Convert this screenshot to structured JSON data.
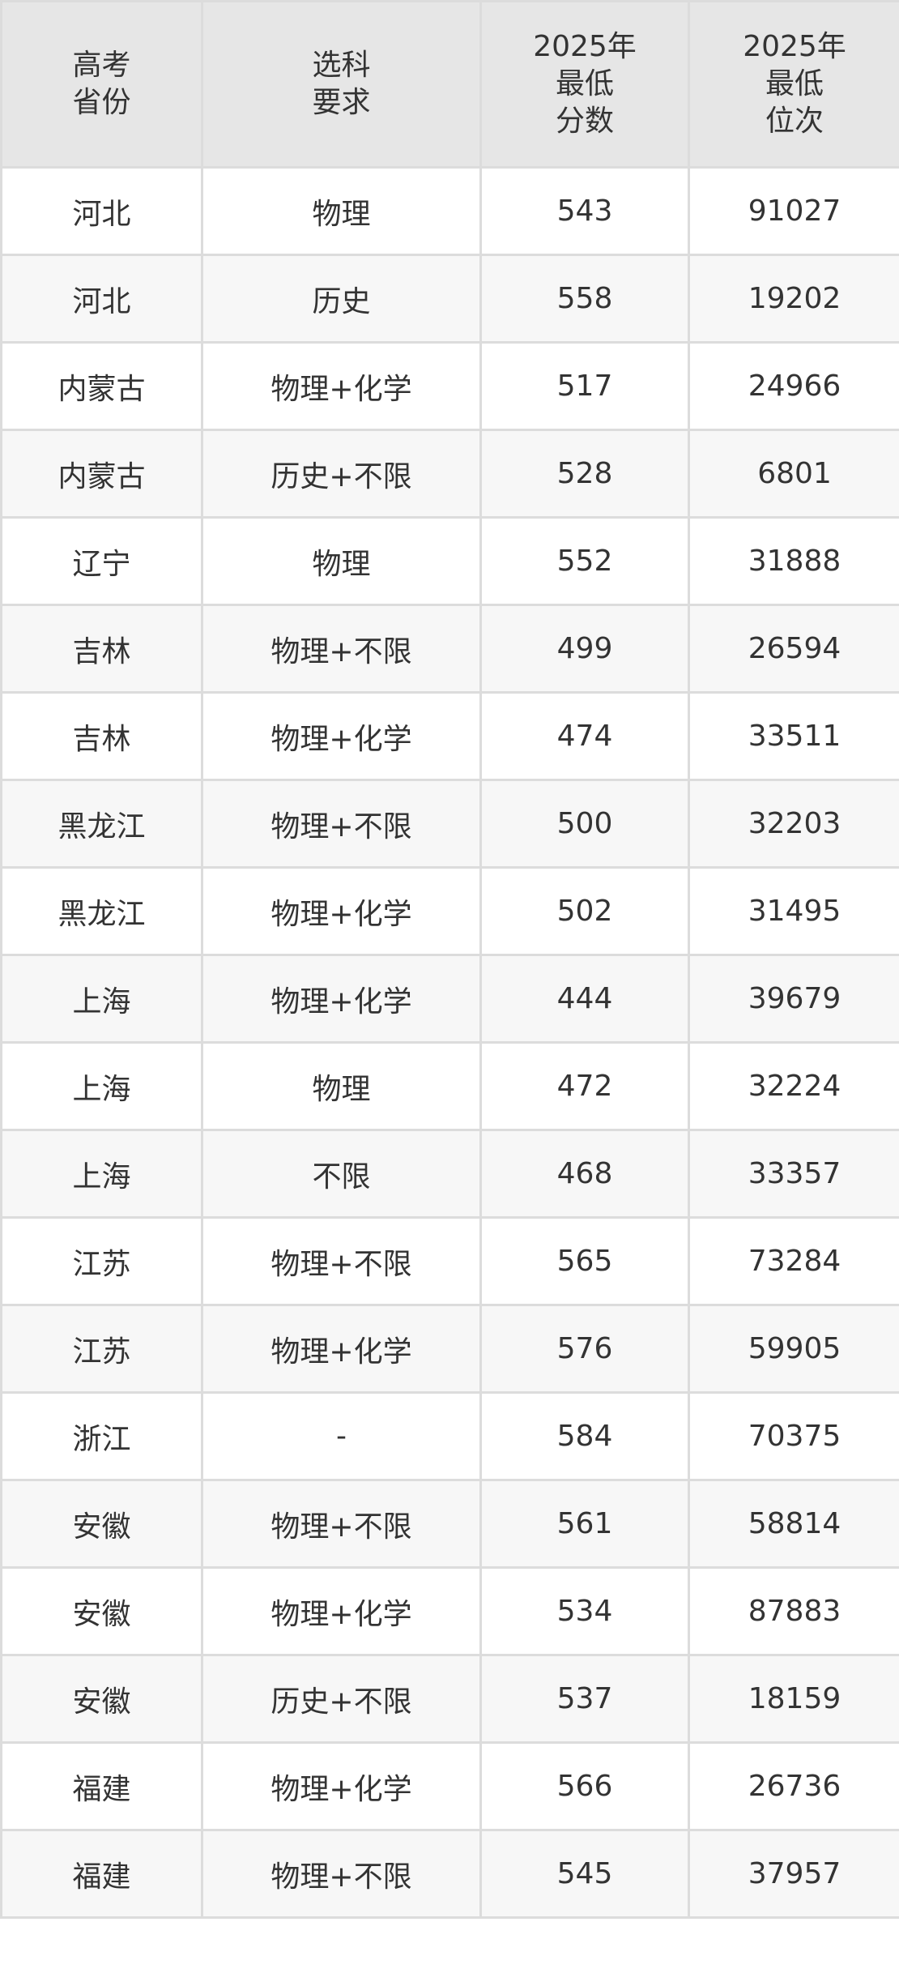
{
  "header": {
    "province": [
      "高考",
      "省份"
    ],
    "subject": [
      "选科",
      "要求"
    ],
    "min_score": [
      "2025年",
      "最低",
      "分数"
    ],
    "min_rank": [
      "2025年",
      "最低",
      "位次"
    ]
  },
  "rows": [
    {
      "province": "河北",
      "subject": "物理",
      "score": "543",
      "rank": "91027"
    },
    {
      "province": "河北",
      "subject": "历史",
      "score": "558",
      "rank": "19202"
    },
    {
      "province": "内蒙古",
      "subject": "物理+化学",
      "score": "517",
      "rank": "24966"
    },
    {
      "province": "内蒙古",
      "subject": "历史+不限",
      "score": "528",
      "rank": "6801"
    },
    {
      "province": "辽宁",
      "subject": "物理",
      "score": "552",
      "rank": "31888"
    },
    {
      "province": "吉林",
      "subject": "物理+不限",
      "score": "499",
      "rank": "26594"
    },
    {
      "province": "吉林",
      "subject": "物理+化学",
      "score": "474",
      "rank": "33511"
    },
    {
      "province": "黑龙江",
      "subject": "物理+不限",
      "score": "500",
      "rank": "32203"
    },
    {
      "province": "黑龙江",
      "subject": "物理+化学",
      "score": "502",
      "rank": "31495"
    },
    {
      "province": "上海",
      "subject": "物理+化学",
      "score": "444",
      "rank": "39679"
    },
    {
      "province": "上海",
      "subject": "物理",
      "score": "472",
      "rank": "32224"
    },
    {
      "province": "上海",
      "subject": "不限",
      "score": "468",
      "rank": "33357"
    },
    {
      "province": "江苏",
      "subject": "物理+不限",
      "score": "565",
      "rank": "73284"
    },
    {
      "province": "江苏",
      "subject": "物理+化学",
      "score": "576",
      "rank": "59905"
    },
    {
      "province": "浙江",
      "subject": "-",
      "score": "584",
      "rank": "70375"
    },
    {
      "province": "安徽",
      "subject": "物理+不限",
      "score": "561",
      "rank": "58814"
    },
    {
      "province": "安徽",
      "subject": "物理+化学",
      "score": "534",
      "rank": "87883"
    },
    {
      "province": "安徽",
      "subject": "历史+不限",
      "score": "537",
      "rank": "18159"
    },
    {
      "province": "福建",
      "subject": "物理+化学",
      "score": "566",
      "rank": "26736"
    },
    {
      "province": "福建",
      "subject": "物理+不限",
      "score": "545",
      "rank": "37957"
    }
  ],
  "colors": {
    "header_bg": "#e6e6e6",
    "alt_row_bg": "#f7f7f7",
    "border": "#dcdcdc",
    "text": "#333333"
  }
}
